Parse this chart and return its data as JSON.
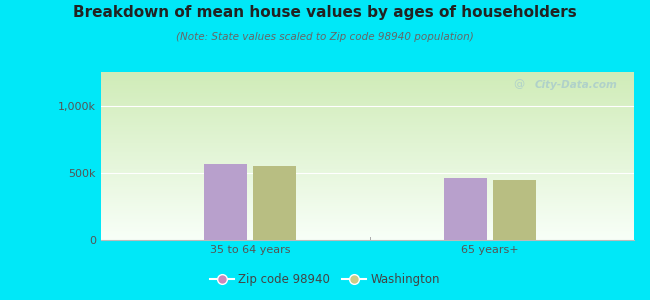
{
  "title": "Breakdown of mean house values by ages of householders",
  "subtitle": "(Note: State values scaled to Zip code 98940 population)",
  "categories": [
    "35 to 64 years",
    "65 years+"
  ],
  "zip_values": [
    565000,
    460000
  ],
  "wa_values": [
    550000,
    450000
  ],
  "ylim": [
    0,
    1250000
  ],
  "ytick_vals": [
    0,
    500000,
    1000000
  ],
  "ytick_labels": [
    "0",
    "500k",
    "1,000k"
  ],
  "bar_color_zip": "#b8a0cc",
  "bar_color_wa": "#b8be82",
  "legend_color_zip": "#cc88bb",
  "legend_color_wa": "#cccc88",
  "background_outer": "#00e8f8",
  "bg_top": "#f8fffa",
  "bg_bottom": "#d8eec0",
  "watermark": "City-Data.com",
  "bar_width": 0.08,
  "group_centers": [
    0.28,
    0.73
  ]
}
